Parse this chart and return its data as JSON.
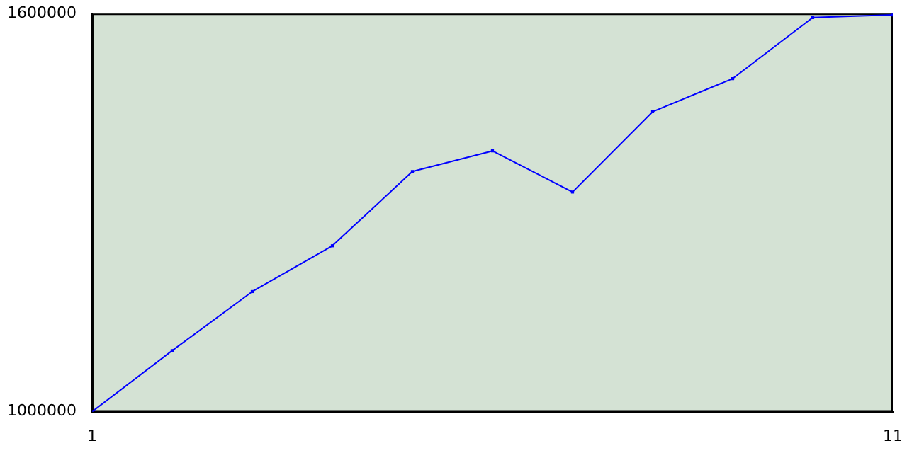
{
  "chart_data": {
    "type": "line",
    "x": [
      1,
      2,
      3,
      4,
      5,
      6,
      7,
      8,
      9,
      10,
      11
    ],
    "series": [
      {
        "color": "#0000ff",
        "values": [
          1000000,
          1092000,
          1181000,
          1250000,
          1362000,
          1393000,
          1331000,
          1452000,
          1502000,
          1594000,
          1598000
        ]
      }
    ],
    "xlim": [
      1,
      11
    ],
    "xticks": [
      1,
      11
    ],
    "ylim": [
      1000000,
      1600000
    ],
    "yticks": [
      1000000,
      1600000
    ],
    "grid": false,
    "legend": false,
    "marker": "square",
    "line_style": "solid"
  }
}
